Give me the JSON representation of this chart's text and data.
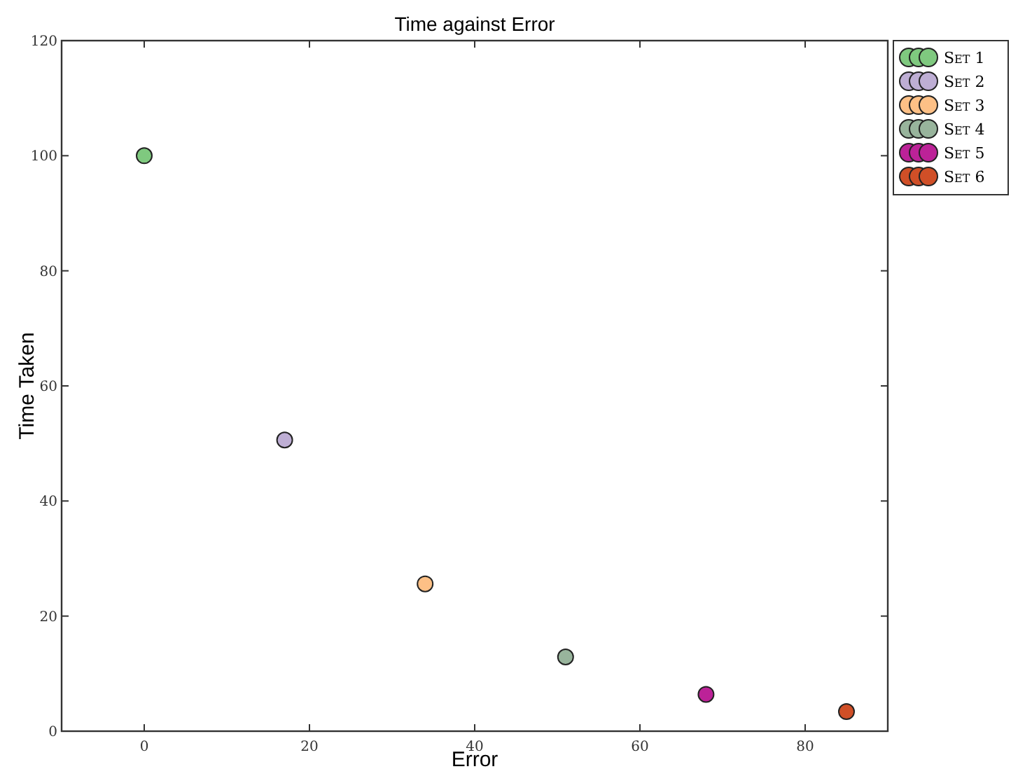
{
  "chart_data": {
    "type": "scatter",
    "title": "Time against Error",
    "xlabel": "Error",
    "ylabel": "Time Taken",
    "xlim": [
      -10,
      90
    ],
    "ylim": [
      0,
      120
    ],
    "xticks": [
      0,
      20,
      40,
      60,
      80
    ],
    "yticks": [
      0,
      20,
      40,
      60,
      80,
      100,
      120
    ],
    "grid": false,
    "legend": "top right",
    "marker": "circle",
    "series": [
      {
        "name": "Set 1",
        "color": "#7fc97f",
        "x": [
          0
        ],
        "values": [
          100
        ]
      },
      {
        "name": "Set 2",
        "color": "#beaed4",
        "x": [
          17
        ],
        "values": [
          50.6
        ]
      },
      {
        "name": "Set 3",
        "color": "#fdc086",
        "x": [
          34
        ],
        "values": [
          25.6
        ]
      },
      {
        "name": "Set 4",
        "color": "#98b49c",
        "x": [
          51
        ],
        "values": [
          12.9
        ]
      },
      {
        "name": "Set 5",
        "color": "#bc2298",
        "x": [
          68
        ],
        "values": [
          6.4
        ]
      },
      {
        "name": "Set 6",
        "color": "#d04f27",
        "x": [
          85
        ],
        "values": [
          3.4
        ]
      }
    ]
  }
}
